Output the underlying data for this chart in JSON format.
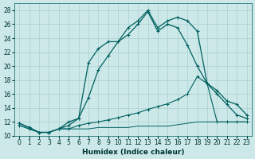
{
  "xlabel": "Humidex (Indice chaleur)",
  "background_color": "#cce8e8",
  "grid_color": "#aacfcf",
  "line_color": "#006060",
  "xlim": [
    -0.5,
    23.5
  ],
  "ylim": [
    10,
    29
  ],
  "xticks": [
    0,
    1,
    2,
    3,
    4,
    5,
    6,
    7,
    8,
    9,
    10,
    11,
    12,
    13,
    14,
    15,
    16,
    17,
    18,
    19,
    20,
    21,
    22,
    23
  ],
  "yticks": [
    10,
    12,
    14,
    16,
    18,
    20,
    22,
    24,
    26,
    28
  ],
  "curve1_x": [
    0,
    1,
    2,
    3,
    4,
    5,
    6,
    7,
    8,
    9,
    10,
    11,
    12,
    13,
    14,
    15,
    16,
    17,
    18,
    19,
    20,
    21,
    22,
    23
  ],
  "curve1_y": [
    11.8,
    11.2,
    10.5,
    10.5,
    11.0,
    11.5,
    12.5,
    15.5,
    19.5,
    21.5,
    23.5,
    24.5,
    26.0,
    27.8,
    25.0,
    26.0,
    25.5,
    23.0,
    20.0,
    17.5,
    16.0,
    14.5,
    13.0,
    12.5
  ],
  "curve2_x": [
    0,
    1,
    2,
    3,
    4,
    5,
    6,
    7,
    8,
    9,
    10,
    11,
    12,
    13,
    14,
    15,
    16,
    17,
    18,
    19,
    20,
    21,
    22,
    23
  ],
  "curve2_y": [
    11.8,
    11.2,
    10.5,
    10.5,
    11.0,
    12.0,
    12.5,
    20.5,
    22.5,
    23.5,
    23.5,
    25.5,
    26.5,
    28.0,
    25.5,
    26.5,
    27.0,
    26.5,
    25.0,
    17.5,
    16.5,
    15.0,
    14.5,
    13.0
  ],
  "curve3_x": [
    0,
    1,
    2,
    3,
    4,
    5,
    6,
    7,
    8,
    9,
    10,
    11,
    12,
    13,
    14,
    15,
    16,
    17,
    18,
    19,
    20,
    21,
    22,
    23
  ],
  "curve3_y": [
    11.5,
    11.0,
    10.5,
    10.5,
    11.0,
    11.0,
    11.5,
    11.8,
    12.0,
    12.3,
    12.6,
    13.0,
    13.3,
    13.8,
    14.2,
    14.6,
    15.2,
    16.0,
    18.5,
    17.5,
    12.0,
    12.0,
    12.0,
    12.0
  ],
  "curve4_x": [
    0,
    1,
    2,
    3,
    4,
    5,
    6,
    7,
    8,
    9,
    10,
    11,
    12,
    13,
    14,
    15,
    16,
    17,
    18,
    19,
    20,
    21,
    22,
    23
  ],
  "curve4_y": [
    11.5,
    11.0,
    10.5,
    10.5,
    11.0,
    11.0,
    11.0,
    11.0,
    11.2,
    11.2,
    11.2,
    11.2,
    11.4,
    11.4,
    11.4,
    11.4,
    11.6,
    11.8,
    12.0,
    12.0,
    12.0,
    12.0,
    12.0,
    12.0
  ]
}
